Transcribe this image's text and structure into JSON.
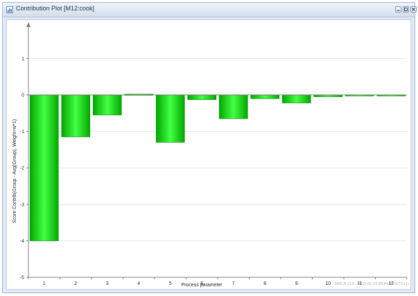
{
  "window": {
    "title": "Contribution Plot [M12:cook]"
  },
  "footer": {
    "timestamp": "SIMCA 13.0 - 2012-01-23 09:44:08 (UTC+1)"
  },
  "colors": {
    "bar_dark": "#00a800",
    "bar_light": "#44ff44",
    "axis": "#808080",
    "grid": "#e6e6e6"
  },
  "chart_data": {
    "type": "bar",
    "title": "",
    "xlabel": "Process parameter",
    "ylabel": "Score Contrib(Group - Avg(Group), Weight=w*1)",
    "categories": [
      "1",
      "2",
      "3",
      "4",
      "5",
      "6",
      "7",
      "8",
      "9",
      "10",
      "11",
      "12"
    ],
    "values": [
      -4.0,
      -1.15,
      -0.55,
      0.02,
      -1.3,
      -0.13,
      -0.65,
      -0.1,
      -0.22,
      -0.05,
      -0.02,
      -0.02
    ],
    "ylim": [
      -5,
      1.9
    ],
    "yticks": [
      -5,
      -4,
      -3,
      -2,
      -1,
      0,
      1
    ],
    "ytick_labels": [
      "-5",
      "-4",
      "-3",
      "-2",
      "-1",
      "0",
      "1"
    ],
    "grid": true,
    "legend": "none"
  }
}
